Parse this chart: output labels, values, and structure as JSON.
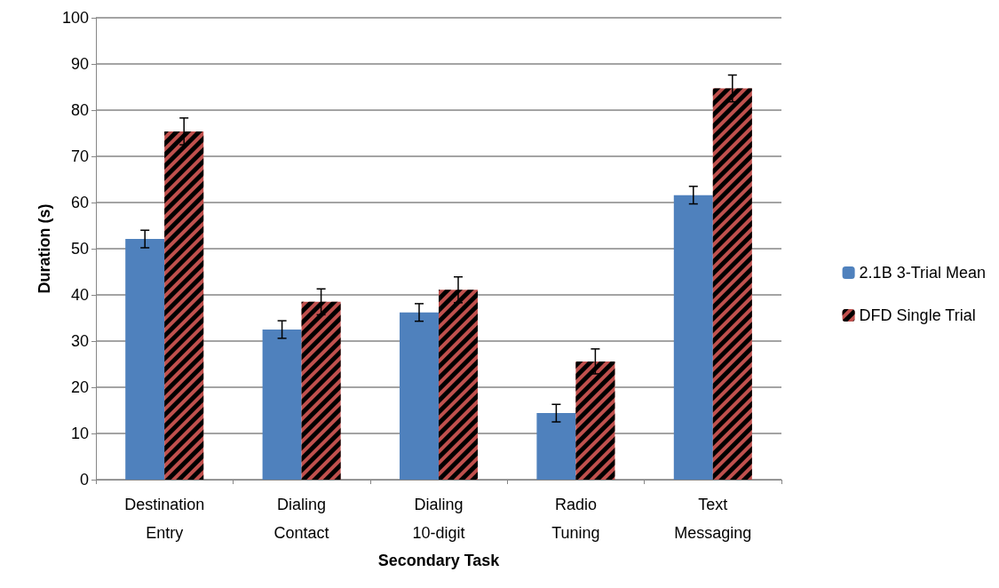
{
  "chart_data": {
    "type": "bar",
    "xlabel": "Secondary Task",
    "ylabel": "Duration (s)",
    "categories": [
      "Destination\nEntry",
      "Dialing\nContact",
      "Dialing\n10-digit",
      "Radio\nTuning",
      "Text\nMessaging"
    ],
    "series": [
      {
        "name": "2.1B 3-Trial Mean",
        "color": "#4f81bd",
        "values": [
          52.1,
          32.5,
          36.2,
          14.4,
          61.6
        ],
        "errors": [
          1.9,
          1.9,
          1.9,
          1.9,
          1.9
        ]
      },
      {
        "name": "DFD Single Trial",
        "color": "#c0504d",
        "values": [
          75.4,
          38.5,
          41.1,
          25.6,
          84.7
        ],
        "errors": [
          2.9,
          2.8,
          2.8,
          2.7,
          2.9
        ]
      }
    ],
    "ylim": [
      0,
      100
    ],
    "yticks": [
      0,
      10,
      20,
      30,
      40,
      50,
      60,
      70,
      80,
      90,
      100
    ],
    "grid": "y",
    "legend": "right"
  }
}
